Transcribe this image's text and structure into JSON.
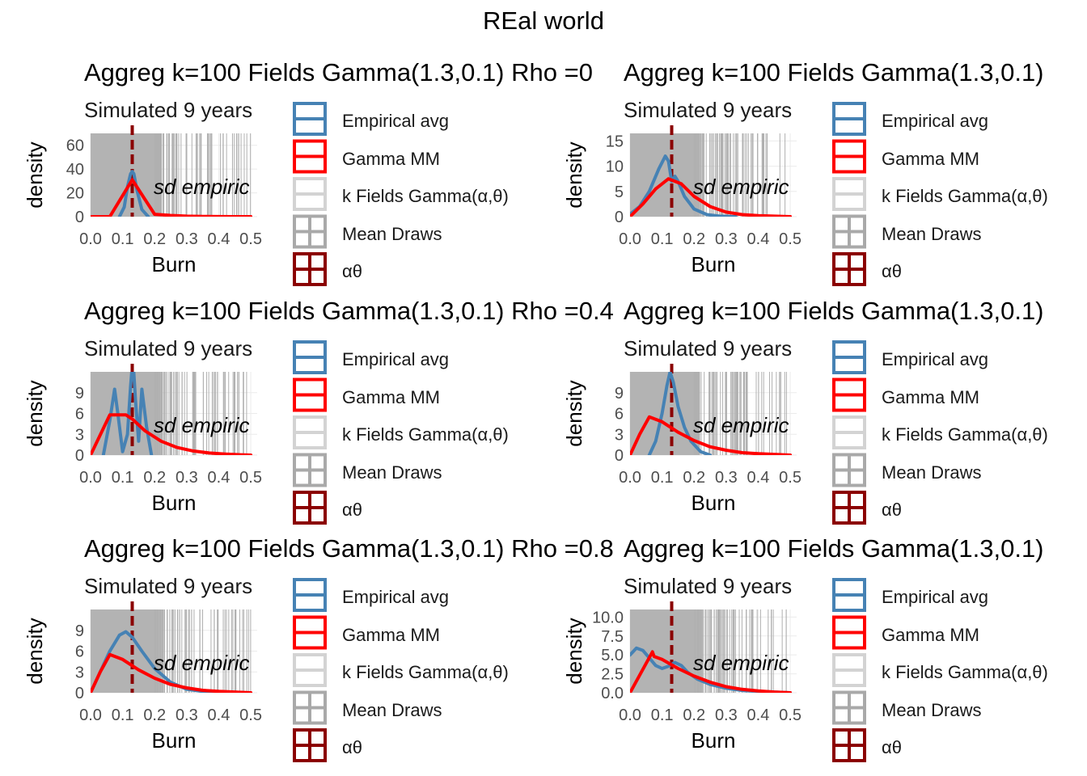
{
  "figure": {
    "suptitle": "REal world"
  },
  "legend": {
    "items": [
      {
        "label": "Empirical avg",
        "color": "#4682B4",
        "style": "box"
      },
      {
        "label": "Gamma MM",
        "color": "#FF0000",
        "style": "box"
      },
      {
        "label": "k Fields Gamma(α,θ)",
        "color": "#D3D3D3",
        "style": "box"
      },
      {
        "label": "Mean Draws",
        "color": "#A9A9A9",
        "style": "vline"
      },
      {
        "label": "αθ",
        "color": "#8B0000",
        "style": "vline"
      }
    ]
  },
  "chart_data": [
    {
      "type": "line",
      "title": "Aggreg k=100 Fields Gamma(1.3,0.1) Rho =0",
      "subtitle": "Simulated 9 years",
      "annotation": "sd empiric",
      "xlabel": "Burn",
      "ylabel": "density",
      "xlim": [
        0,
        0.52
      ],
      "ylim": [
        0,
        70
      ],
      "xticks": [
        "0.0",
        "0.1",
        "0.2",
        "0.3",
        "0.4",
        "0.5"
      ],
      "yticks": [
        0,
        20,
        40,
        60
      ],
      "ytick_labels": [
        "0",
        "20",
        "40",
        "60"
      ],
      "alpha_theta": 0.13,
      "series": [
        {
          "name": "Empirical avg",
          "x": [
            0.09,
            0.105,
            0.115,
            0.125,
            0.13,
            0.135,
            0.145,
            0.16,
            0.18
          ],
          "y": [
            0,
            8,
            25,
            36,
            38,
            36,
            22,
            6,
            0
          ]
        },
        {
          "name": "Gamma MM",
          "x": [
            0,
            0.06,
            0.13,
            0.2,
            0.25,
            0.3,
            0.35,
            0.4,
            0.45,
            0.5
          ],
          "y": [
            0,
            0,
            31,
            2,
            1,
            0.4,
            0.2,
            0.1,
            0,
            0
          ]
        }
      ]
    },
    {
      "type": "line",
      "title": "Aggreg k=100 Fields Gamma(1.3,0.1)",
      "subtitle": "Simulated 9 years",
      "annotation": "sd empiric",
      "xlabel": "Burn",
      "ylabel": "density",
      "xlim": [
        0,
        0.52
      ],
      "ylim": [
        0,
        16.5
      ],
      "xticks": [
        "0.0",
        "0.1",
        "0.2",
        "0.3",
        "0.4",
        "0.5"
      ],
      "yticks": [
        0,
        5,
        10,
        15
      ],
      "ytick_labels": [
        "0",
        "5",
        "10",
        "15"
      ],
      "alpha_theta": 0.13,
      "series": [
        {
          "name": "Empirical avg",
          "x": [
            0,
            0.03,
            0.06,
            0.09,
            0.11,
            0.12,
            0.13,
            0.14,
            0.15,
            0.17,
            0.2,
            0.24,
            0.28,
            0.33
          ],
          "y": [
            0.5,
            2,
            5,
            9.5,
            12,
            11,
            7,
            8,
            7,
            4,
            1.5,
            0.4,
            0.1,
            0
          ]
        },
        {
          "name": "Gamma MM",
          "x": [
            0,
            0.04,
            0.08,
            0.12,
            0.16,
            0.2,
            0.25,
            0.3,
            0.35,
            0.4,
            0.45,
            0.5
          ],
          "y": [
            0,
            2.5,
            5.5,
            7.5,
            6.5,
            4,
            2,
            0.9,
            0.4,
            0.2,
            0.1,
            0
          ]
        }
      ]
    },
    {
      "type": "line",
      "title": "Aggreg k=100 Fields Gamma(1.3,0.1) Rho =0.4",
      "subtitle": "Simulated 9 years",
      "annotation": "sd empiric",
      "xlabel": "Burn",
      "ylabel": "density",
      "xlim": [
        0,
        0.52
      ],
      "ylim": [
        0,
        12
      ],
      "xticks": [
        "0.0",
        "0.1",
        "0.2",
        "0.3",
        "0.4",
        "0.5"
      ],
      "yticks": [
        0,
        3,
        6,
        9
      ],
      "ytick_labels": [
        "0",
        "3",
        "6",
        "9"
      ],
      "alpha_theta": 0.13,
      "series": [
        {
          "name": "Empirical avg",
          "x": [
            0.04,
            0.06,
            0.075,
            0.085,
            0.1,
            0.115,
            0.125,
            0.132,
            0.14,
            0.15,
            0.16,
            0.175,
            0.19
          ],
          "y": [
            0,
            5,
            9.5,
            6,
            0.5,
            3,
            10,
            14,
            8,
            2,
            9.5,
            4,
            0
          ]
        },
        {
          "name": "Gamma MM",
          "x": [
            0,
            0.06,
            0.11,
            0.13,
            0.17,
            0.22,
            0.27,
            0.32,
            0.37,
            0.42,
            0.47,
            0.5
          ],
          "y": [
            0,
            5.8,
            5.8,
            5.2,
            3.5,
            2,
            1.1,
            0.6,
            0.3,
            0.15,
            0.05,
            0
          ]
        }
      ]
    },
    {
      "type": "line",
      "title": "Aggreg k=100 Fields Gamma(1.3,0.1)",
      "subtitle": "Simulated 9 years",
      "annotation": "sd empiric",
      "xlabel": "Burn",
      "ylabel": "density",
      "xlim": [
        0,
        0.52
      ],
      "ylim": [
        0,
        12
      ],
      "xticks": [
        "0.0",
        "0.1",
        "0.2",
        "0.3",
        "0.4",
        "0.5"
      ],
      "yticks": [
        0,
        3,
        6,
        9
      ],
      "ytick_labels": [
        "0",
        "3",
        "6",
        "9"
      ],
      "alpha_theta": 0.13,
      "series": [
        {
          "name": "Empirical avg",
          "x": [
            0.06,
            0.08,
            0.1,
            0.115,
            0.125,
            0.135,
            0.15,
            0.17,
            0.19,
            0.22,
            0.25
          ],
          "y": [
            0,
            2,
            6,
            10,
            12,
            10.5,
            7,
            4,
            2,
            0.5,
            0
          ]
        },
        {
          "name": "Gamma MM",
          "x": [
            0,
            0.03,
            0.06,
            0.1,
            0.15,
            0.2,
            0.25,
            0.3,
            0.35,
            0.4,
            0.45,
            0.5
          ],
          "y": [
            0,
            3,
            5.5,
            4.8,
            3.3,
            2.1,
            1.2,
            0.7,
            0.35,
            0.2,
            0.1,
            0
          ]
        }
      ]
    },
    {
      "type": "line",
      "title": "Aggreg k=100 Fields Gamma(1.3,0.1) Rho =0.8",
      "subtitle": "Simulated 9 years",
      "annotation": "sd empiric",
      "xlabel": "Burn",
      "ylabel": "density",
      "xlim": [
        0,
        0.52
      ],
      "ylim": [
        0,
        12
      ],
      "xticks": [
        "0.0",
        "0.1",
        "0.2",
        "0.3",
        "0.4",
        "0.5"
      ],
      "yticks": [
        0,
        3,
        6,
        9
      ],
      "ytick_labels": [
        "0",
        "3",
        "6",
        "9"
      ],
      "alpha_theta": 0.13,
      "series": [
        {
          "name": "Empirical avg",
          "x": [
            0,
            0.03,
            0.06,
            0.09,
            0.11,
            0.13,
            0.16,
            0.2,
            0.25,
            0.3,
            0.35,
            0.4
          ],
          "y": [
            0,
            3,
            6,
            8.3,
            8.8,
            8,
            6,
            3.5,
            1.5,
            0.5,
            0.2,
            0
          ]
        },
        {
          "name": "Gamma MM",
          "x": [
            0,
            0.03,
            0.06,
            0.1,
            0.15,
            0.2,
            0.25,
            0.3,
            0.35,
            0.4,
            0.45,
            0.5
          ],
          "y": [
            0,
            3,
            5.5,
            4.8,
            3.3,
            2.1,
            1.2,
            0.7,
            0.35,
            0.2,
            0.1,
            0
          ]
        }
      ]
    },
    {
      "type": "line",
      "title": "Aggreg k=100 Fields Gamma(1.3,0.1)",
      "subtitle": "Simulated 9 years",
      "annotation": "sd empiric",
      "xlabel": "Burn",
      "ylabel": "density",
      "xlim": [
        0,
        0.52
      ],
      "ylim": [
        0,
        11
      ],
      "xticks": [
        "0.0",
        "0.1",
        "0.2",
        "0.3",
        "0.4",
        "0.5"
      ],
      "yticks": [
        0,
        2.5,
        5,
        7.5,
        10
      ],
      "ytick_labels": [
        "0.0",
        "2.5",
        "5.0",
        "7.5",
        "10.0"
      ],
      "alpha_theta": 0.13,
      "series": [
        {
          "name": "Empirical avg",
          "x": [
            0,
            0.02,
            0.04,
            0.06,
            0.08,
            0.1,
            0.12,
            0.14,
            0.16,
            0.18,
            0.21,
            0.25,
            0.3,
            0.35,
            0.4,
            0.45,
            0.5
          ],
          "y": [
            5,
            5.9,
            5.6,
            4.6,
            3.6,
            3.2,
            3.5,
            4,
            3.6,
            2.7,
            1.8,
            1.1,
            0.6,
            0.3,
            0.2,
            0.1,
            0
          ]
        },
        {
          "name": "Gamma MM",
          "x": [
            0,
            0.07,
            0.075,
            0.1,
            0.15,
            0.2,
            0.25,
            0.3,
            0.35,
            0.4,
            0.45,
            0.5
          ],
          "y": [
            0,
            5.4,
            4.8,
            4.4,
            3.2,
            2.2,
            1.4,
            0.8,
            0.45,
            0.25,
            0.1,
            0
          ]
        }
      ]
    }
  ]
}
